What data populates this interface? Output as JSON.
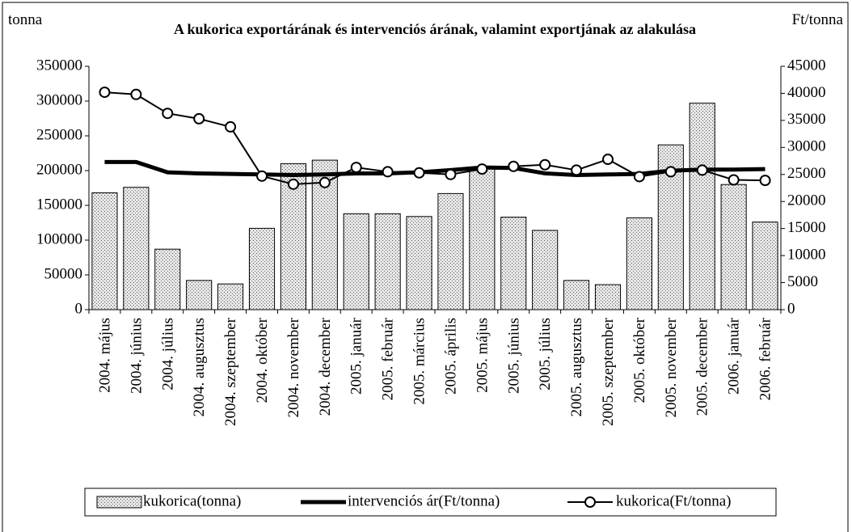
{
  "chart_data": {
    "type": "bar-line",
    "title": "A kukorica exportárának és intervenciós árának, valamint exportjának az alakulása",
    "y_label": "tonna",
    "y2_label": "Ft/tonna",
    "categories": [
      "2004. május",
      "2004. június",
      "2004. július",
      "2004. augusztus",
      "2004. szeptember",
      "2004. október",
      "2004. november",
      "2004. december",
      "2005. január",
      "2005. február",
      "2005. március",
      "2005. április",
      "2005. május",
      "2005. június",
      "2005. július",
      "2005. augusztus",
      "2005. szeptember",
      "2005. október",
      "2005. november",
      "2005. december",
      "2006. január",
      "2006. február"
    ],
    "series": [
      {
        "name": "kukorica(tonna)",
        "type": "bar",
        "color": "#e6e6e6",
        "values": [
          168000,
          176000,
          87000,
          42000,
          37000,
          117000,
          210000,
          215000,
          138000,
          138000,
          134000,
          167000,
          203000,
          133000,
          114000,
          42000,
          36000,
          132000,
          237000,
          297000,
          180000,
          126000
        ]
      },
      {
        "name": "intervenciós ár(Ft/tonna)",
        "type": "line",
        "axis": "y2",
        "color": "#000000",
        "values": [
          27300,
          27300,
          25400,
          25200,
          25100,
          25000,
          24900,
          25000,
          25200,
          25200,
          25400,
          25800,
          26300,
          26200,
          25200,
          24900,
          25000,
          25100,
          25700,
          25900,
          25900,
          26000
        ]
      },
      {
        "name": "kukorica(Ft/tonna)",
        "type": "line-marker",
        "axis": "y2",
        "color": "#000000",
        "values": [
          40200,
          39800,
          36300,
          35300,
          33800,
          24700,
          23200,
          23500,
          26300,
          25500,
          25300,
          25000,
          26000,
          26500,
          26800,
          25800,
          27800,
          24600,
          25500,
          25800,
          24000,
          23900
        ]
      }
    ],
    "ylim": [
      0,
      350000
    ],
    "yticks": [
      0,
      50000,
      100000,
      150000,
      200000,
      250000,
      300000,
      350000
    ],
    "y2lim": [
      0,
      45000
    ],
    "y2ticks": [
      0,
      5000,
      10000,
      15000,
      20000,
      25000,
      30000,
      35000,
      40000,
      45000
    ],
    "legend": "bottom"
  }
}
